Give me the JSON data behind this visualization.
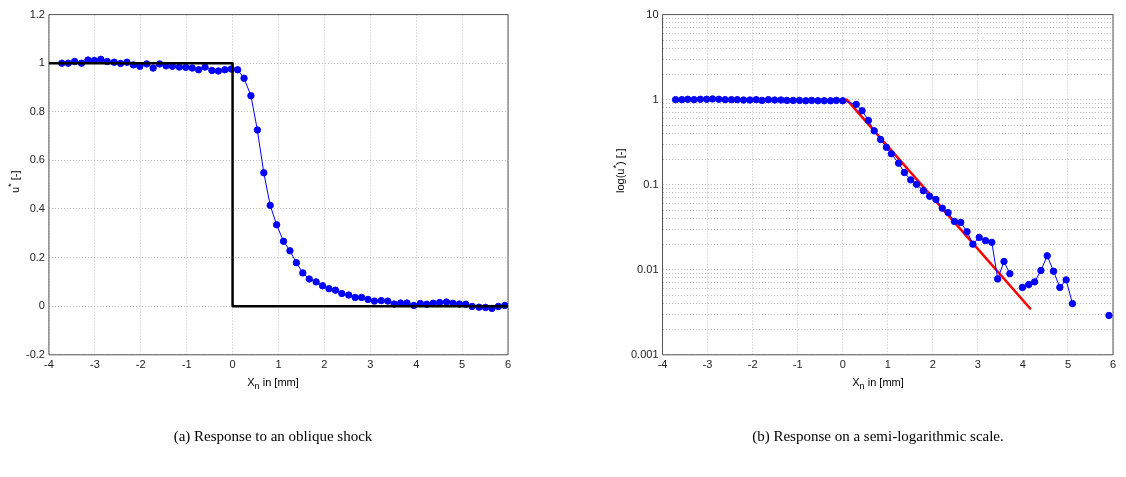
{
  "chart_data": [
    {
      "type": "line",
      "xlabel": "X$_{n}$ in [mm]",
      "ylabel": "u$^{*}$ [-]",
      "annotations": [
        "(a) Response to an oblique shock"
      ],
      "xlim": [
        -4,
        6
      ],
      "ylim": [
        -0.2,
        1.2
      ],
      "xticks": [
        -4,
        -3,
        -2,
        -1,
        0,
        1,
        2,
        3,
        4,
        5,
        6
      ],
      "yticks": [
        -0.2,
        0,
        0.2,
        0.4,
        0.6,
        0.8,
        1,
        1.2
      ],
      "grid": true,
      "series": [
        {
          "color": "#000000",
          "marker": "none",
          "x": [
            -4,
            0,
            0,
            6
          ],
          "values": [
            1,
            1,
            0,
            0
          ]
        },
        {
          "color": "#0000ff",
          "marker": "circle",
          "x": [
            -3.72,
            -3.58,
            -3.44,
            -3.29,
            -3.15,
            -3.01,
            -2.87,
            -2.73,
            -2.58,
            -2.44,
            -2.3,
            -2.16,
            -2.02,
            -1.87,
            -1.73,
            -1.59,
            -1.45,
            -1.31,
            -1.16,
            -1.02,
            -0.88,
            -0.74,
            -0.6,
            -0.45,
            -0.31,
            -0.17,
            -0.03,
            0.11,
            0.25,
            0.4,
            0.54,
            0.68,
            0.82,
            0.96,
            1.11,
            1.25,
            1.39,
            1.53,
            1.67,
            1.82,
            1.96,
            2.1,
            2.24,
            2.38,
            2.53,
            2.67,
            2.81,
            2.95,
            3.09,
            3.24,
            3.38,
            3.52,
            3.66,
            3.8,
            3.95,
            4.09,
            4.23,
            4.37,
            4.51,
            4.66,
            4.8,
            4.94,
            5.08,
            5.22,
            5.37,
            5.51,
            5.65,
            5.79,
            5.93
          ],
          "values": [
            1.0,
            1.0,
            1.007,
            1.0,
            1.013,
            1.011,
            1.016,
            1.007,
            1.004,
            0.999,
            1.004,
            0.993,
            0.987,
            0.997,
            0.98,
            0.997,
            0.989,
            0.987,
            0.984,
            0.983,
            0.98,
            0.973,
            0.984,
            0.97,
            0.968,
            0.973,
            0.976,
            0.973,
            0.938,
            0.866,
            0.725,
            0.549,
            0.415,
            0.335,
            0.267,
            0.228,
            0.179,
            0.137,
            0.112,
            0.1,
            0.084,
            0.072,
            0.066,
            0.052,
            0.046,
            0.036,
            0.036,
            0.028,
            0.021,
            0.023,
            0.021,
            0.009,
            0.013,
            0.013,
            0.003,
            0.011,
            0.008,
            0.012,
            0.015,
            0.017,
            0.012,
            0.009,
            0.008,
            -0.001,
            -0.004,
            -0.005,
            -0.009,
            -0.001,
            0.003
          ]
        }
      ]
    },
    {
      "type": "line",
      "xlabel": "X$_{n}$ in [mm]",
      "ylabel": "log(u$^{*}$) [-]",
      "annotations": [
        "(b) Response on a semi-logarithmic scale."
      ],
      "xlim": [
        -4,
        6
      ],
      "ylim": [
        0.001,
        10
      ],
      "xticks": [
        -4,
        -3,
        -2,
        -1,
        0,
        1,
        2,
        3,
        4,
        5,
        6
      ],
      "yticks": [
        0.001,
        {
          "value": 0.002,
          "label": null
        },
        {
          "value": 0.003,
          "label": null
        },
        {
          "value": 0.004,
          "label": null
        },
        {
          "value": 0.005,
          "label": null
        },
        {
          "value": 0.006,
          "label": null
        },
        {
          "value": 0.007,
          "label": null
        },
        {
          "value": 0.008,
          "label": null
        },
        {
          "value": 0.009,
          "label": null
        },
        0.01,
        {
          "value": 0.02,
          "label": null
        },
        {
          "value": 0.03,
          "label": null
        },
        {
          "value": 0.04,
          "label": null
        },
        {
          "value": 0.05,
          "label": null
        },
        {
          "value": 0.06,
          "label": null
        },
        {
          "value": 0.07,
          "label": null
        },
        {
          "value": 0.08,
          "label": null
        },
        {
          "value": 0.09,
          "label": null
        },
        0.1,
        {
          "value": 0.2,
          "label": null
        },
        {
          "value": 0.3,
          "label": null
        },
        {
          "value": 0.4,
          "label": null
        },
        {
          "value": 0.5,
          "label": null
        },
        {
          "value": 0.6,
          "label": null
        },
        {
          "value": 0.7,
          "label": null
        },
        {
          "value": 0.8,
          "label": null
        },
        {
          "value": 0.9,
          "label": null
        },
        1,
        {
          "value": 2,
          "label": null
        },
        {
          "value": 3,
          "label": null
        },
        {
          "value": 4,
          "label": null
        },
        {
          "value": 5,
          "label": null
        },
        {
          "value": 6,
          "label": null
        },
        {
          "value": 7,
          "label": null
        },
        {
          "value": 8,
          "label": null
        },
        {
          "value": 9,
          "label": null
        },
        10
      ],
      "grid": true,
      "log": "y",
      "series": [
        {
          "color": "#0000ff",
          "marker": "circle",
          "x": [
            -3.71,
            -3.57,
            -3.44,
            -3.3,
            -3.16,
            -3.02,
            -2.89,
            -2.75,
            -2.61,
            -2.47,
            -2.34,
            -2.2,
            -2.06,
            -1.92,
            -1.79,
            -1.65,
            -1.51,
            -1.37,
            -1.24,
            -1.1,
            -0.96,
            -0.82,
            -0.69,
            -0.55,
            -0.41,
            -0.27,
            -0.14,
            0.0,
            0.3,
            0.43,
            0.57,
            0.7,
            0.84,
            0.97,
            1.08,
            1.24,
            1.37,
            1.51,
            1.64,
            1.79,
            1.93,
            2.07,
            2.21,
            2.34,
            2.48,
            2.62,
            2.76,
            2.89,
            3.03,
            3.17,
            3.31,
            3.44,
            3.58,
            3.71,
            3.85,
            3.99,
            4.13,
            4.26,
            4.4,
            4.54,
            4.68,
            4.82,
            4.96,
            5.1,
            5.5,
            5.91
          ],
          "values": [
            1.0,
            1.0,
            1.01,
            1.0,
            1.01,
            1.01,
            1.02,
            1.01,
            1.0,
            1.0,
            1.0,
            0.99,
            0.99,
            1.0,
            0.98,
            1.0,
            0.99,
            0.99,
            0.98,
            0.98,
            0.98,
            0.97,
            0.98,
            0.97,
            0.97,
            0.97,
            0.98,
            0.97,
            0.88,
            0.74,
            0.57,
            0.43,
            0.34,
            0.275,
            0.231,
            0.179,
            0.139,
            0.114,
            0.101,
            0.085,
            0.073,
            0.067,
            0.053,
            0.047,
            0.037,
            0.036,
            0.028,
            0.02,
            0.024,
            0.022,
            0.021,
            0.0078,
            0.0125,
            0.009,
            null,
            0.0062,
            0.0067,
            0.0072,
            0.0098,
            0.0146,
            0.0096,
            0.0062,
            0.0076,
            0.004,
            null,
            0.0029
          ]
        },
        {
          "color": "#ff0000",
          "marker": "none",
          "x": [
            0.09,
            4.16
          ],
          "values": [
            1.0,
            0.0035
          ]
        }
      ]
    }
  ]
}
